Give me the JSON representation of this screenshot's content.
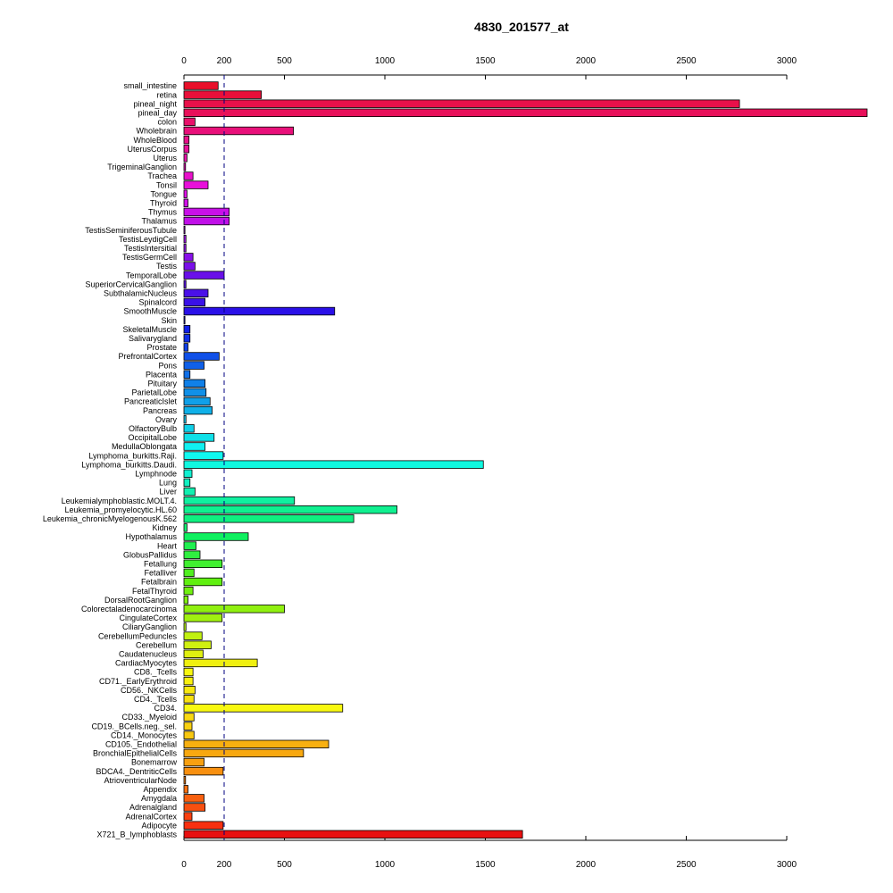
{
  "chart_data": {
    "type": "bar",
    "orientation": "horizontal",
    "title": "4830_201577_at",
    "xlabel": "",
    "ylabel": "",
    "xlim": [
      0,
      3400
    ],
    "xticks": [
      0,
      200,
      500,
      1000,
      1500,
      2000,
      2500,
      3000
    ],
    "reference_line": 200,
    "axes": [
      "top",
      "bottom"
    ],
    "grid": false,
    "categories": [
      "small_intestine",
      "retina",
      "pineal_night",
      "pineal_day",
      "colon",
      "Wholebrain",
      "WholeBlood",
      "UterusCorpus",
      "Uterus",
      "TrigeminalGanglion",
      "Trachea",
      "Tonsil",
      "Tongue",
      "Thyroid",
      "Thymus",
      "Thalamus",
      "TestisSeminiferousTubule",
      "TestisLeydigCell",
      "TestisIntersitial",
      "TestisGermCell",
      "Testis",
      "TemporalLobe",
      "SuperiorCervicalGanglion",
      "SubthalamicNucleus",
      "Spinalcord",
      "SmoothMuscle",
      "Skin",
      "SkeletalMuscle",
      "Salivarygland",
      "Prostate",
      "PrefrontalCortex",
      "Pons",
      "Placenta",
      "Pituitary",
      "ParietalLobe",
      "PancreaticIslet",
      "Pancreas",
      "Ovary",
      "OlfactoryBulb",
      "OccipitalLobe",
      "MedullaOblongata",
      "Lymphoma_burkitts.Raji.",
      "Lymphoma_burkitts.Daudi.",
      "Lymphnode",
      "Lung",
      "Liver",
      "Leukemialymphoblastic.MOLT.4.",
      "Leukemia_promyelocytic.HL.60",
      "Leukemia_chronicMyelogenousK.562",
      "Kidney",
      "Hypothalamus",
      "Heart",
      "GlobusPallidus",
      "Fetallung",
      "Fetalliver",
      "Fetalbrain",
      "FetalThyroid",
      "DorsalRootGanglion",
      "Colorectaladenocarcinoma",
      "CingulateCortex",
      "CiliaryGanglion",
      "CerebellumPeduncles",
      "Cerebellum",
      "Caudatenucleus",
      "CardiacMyocytes",
      "CD8._Tcells",
      "CD71._EarlyErythroid",
      "CD56._NKCells",
      "CD4._Tcells",
      "CD34.",
      "CD33._Myeloid",
      "CD19._BCells.neg._sel.",
      "CD14._Monocytes",
      "CD105._Endothelial",
      "BronchialEpithelialCells",
      "Bonemarrow",
      "BDCA4._DentriticCells",
      "AtrioventricularNode",
      "Appendix",
      "Amygdala",
      "Adrenalgland",
      "AdrenalCortex",
      "Adipocyte",
      "X721_B_lymphoblasts"
    ],
    "values": [
      170,
      385,
      2765,
      3400,
      55,
      545,
      25,
      25,
      15,
      8,
      45,
      120,
      15,
      20,
      225,
      225,
      5,
      10,
      10,
      45,
      55,
      200,
      10,
      120,
      105,
      750,
      5,
      30,
      30,
      20,
      175,
      100,
      30,
      105,
      110,
      130,
      140,
      10,
      50,
      150,
      105,
      195,
      1490,
      40,
      30,
      55,
      550,
      1060,
      845,
      15,
      320,
      60,
      80,
      190,
      50,
      190,
      45,
      20,
      500,
      190,
      10,
      90,
      135,
      95,
      365,
      45,
      45,
      55,
      50,
      790,
      50,
      40,
      50,
      720,
      595,
      100,
      195,
      8,
      20,
      100,
      105,
      40,
      195,
      1685
    ],
    "colors": [
      "#e8102a",
      "#e8103a",
      "#e8104a",
      "#e8105a",
      "#e8106a",
      "#e8107a",
      "#e8108a",
      "#e8109a",
      "#e810aa",
      "#e810ba",
      "#e810ca",
      "#e810da",
      "#e010e8",
      "#d010e8",
      "#c810e8",
      "#c010e8",
      "#b010e8",
      "#a010e8",
      "#9010e8",
      "#8810e8",
      "#7a10e8",
      "#6a10e8",
      "#5a10e8",
      "#4a10e8",
      "#3a10e8",
      "#2a10e8",
      "#1a10e8",
      "#1020e8",
      "#1030e8",
      "#1040e8",
      "#1050e8",
      "#1060e8",
      "#1070e8",
      "#1080e8",
      "#1090e8",
      "#10a0e8",
      "#10b0e8",
      "#10c0e8",
      "#10d0e8",
      "#10e0e8",
      "#10f0f0",
      "#10f8f0",
      "#10f8e0",
      "#10f0d0",
      "#10f0c0",
      "#10f0b0",
      "#10f0a0",
      "#10f090",
      "#10f080",
      "#10f070",
      "#10f060",
      "#20f050",
      "#30f040",
      "#40f030",
      "#50f020",
      "#60f010",
      "#70f010",
      "#80f010",
      "#90f010",
      "#a0f010",
      "#b0f010",
      "#c0f010",
      "#d0f010",
      "#e0f010",
      "#f0f010",
      "#f8f810",
      "#f8f010",
      "#f8e810",
      "#f8e010",
      "#f8f810",
      "#f8d810",
      "#f8d010",
      "#f8c810",
      "#f8b010",
      "#f8a810",
      "#f8a010",
      "#f89010",
      "#f88010",
      "#f87010",
      "#f86010",
      "#f85010",
      "#f84010",
      "#f83010",
      "#e81010"
    ]
  }
}
